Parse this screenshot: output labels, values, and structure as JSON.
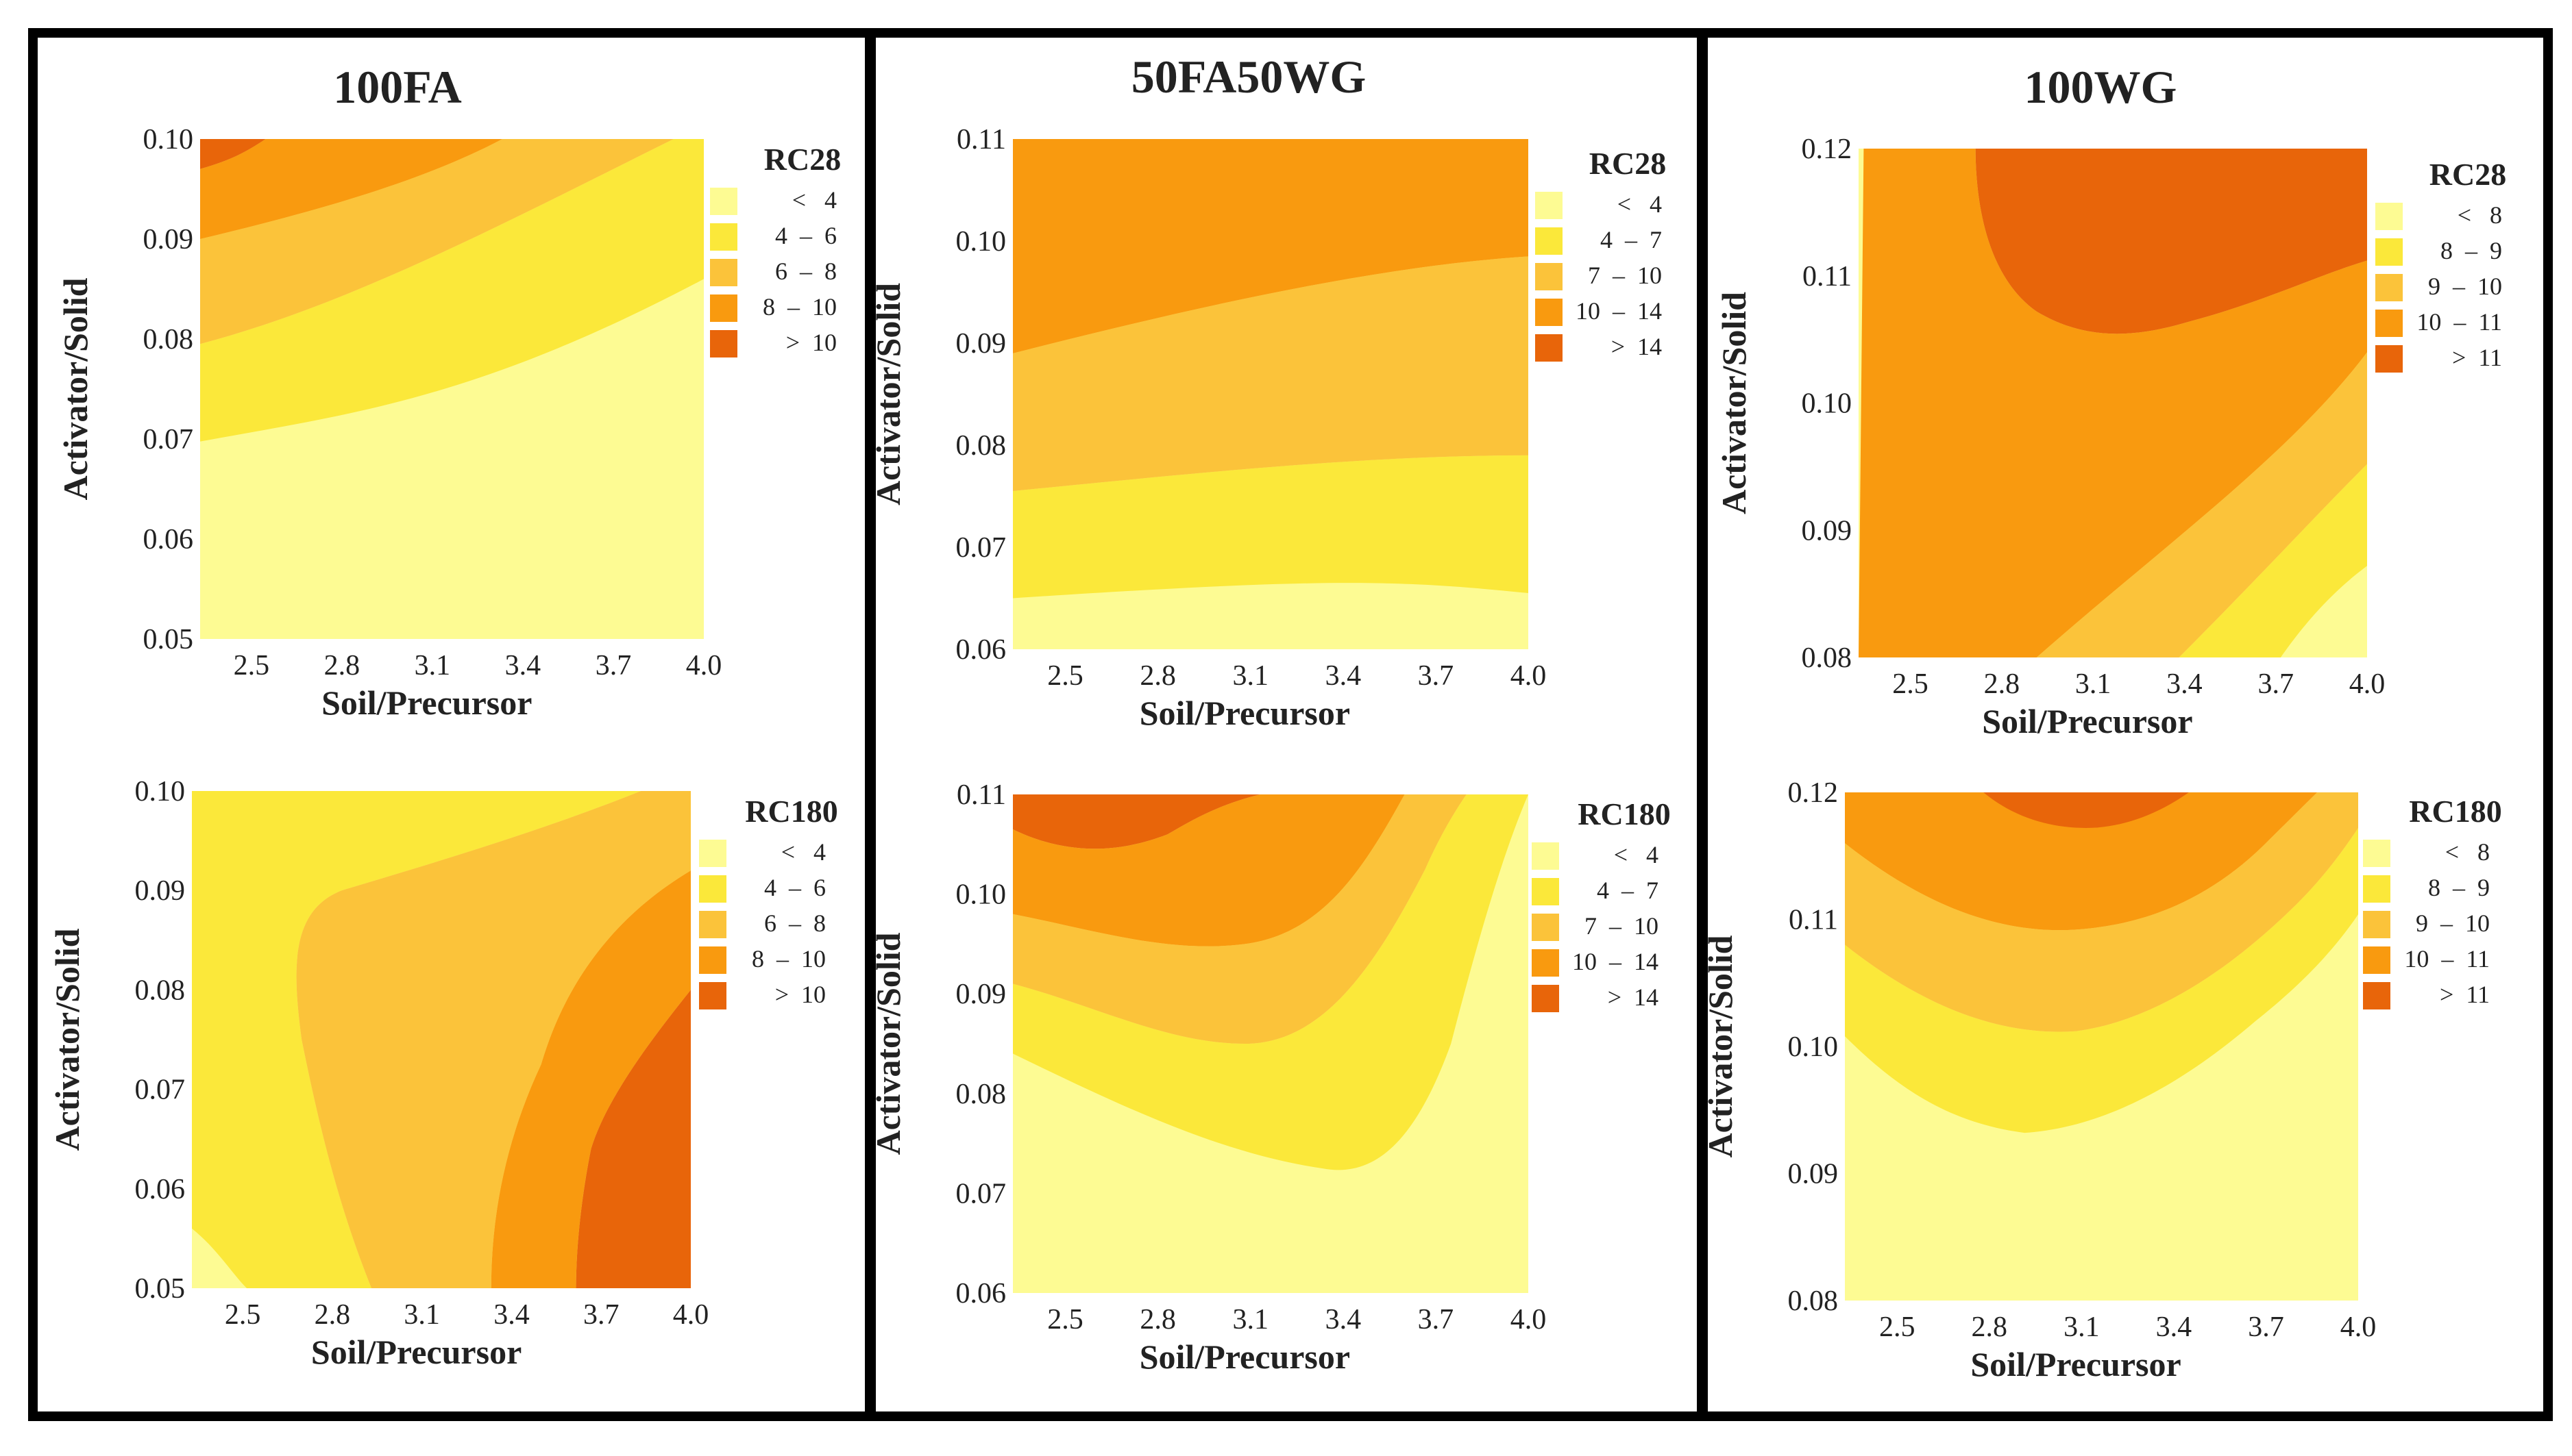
{
  "colors": {
    "c1": "#fdfb93",
    "c2": "#fbe83a",
    "c3": "#fbc33a",
    "c4": "#f99a0f",
    "c5": "#e8650a",
    "frame": "#000000"
  },
  "chart_data": [
    {
      "type": "contour",
      "column_title": "100FA",
      "legend_title": "RC28",
      "legend_labels": [
        "<   4",
        "4  –  6",
        "6  –  8",
        "8  –  10",
        ">  10"
      ],
      "xlabel": "Soil/Precursor",
      "ylabel": "Activator/Solid",
      "x_ticks": [
        "2.5",
        "2.8",
        "3.1",
        "3.4",
        "3.7",
        "4.0"
      ],
      "y_ticks": [
        "0.10",
        "0.09",
        "0.08",
        "0.07",
        "0.06",
        "0.05"
      ],
      "x_range": [
        2.33,
        4.0
      ],
      "y_range": [
        0.05,
        0.1
      ]
    },
    {
      "type": "contour",
      "column_title": "50FA50WG",
      "legend_title": "RC28",
      "legend_labels": [
        "<   4",
        "4  –  7",
        "7  –  10",
        "10  –  14",
        ">  14"
      ],
      "xlabel": "Soil/Precursor",
      "ylabel": "Activator/Solid",
      "x_ticks": [
        "2.5",
        "2.8",
        "3.1",
        "3.4",
        "3.7",
        "4.0"
      ],
      "y_ticks": [
        "0.11",
        "0.10",
        "0.09",
        "0.08",
        "0.07",
        "0.06"
      ],
      "x_range": [
        2.33,
        4.0
      ],
      "y_range": [
        0.06,
        0.11
      ]
    },
    {
      "type": "contour",
      "column_title": "100WG",
      "legend_title": "RC28",
      "legend_labels": [
        "<   8",
        "8  –  9",
        "9  –  10",
        "10  –  11",
        ">  11"
      ],
      "xlabel": "Soil/Precursor",
      "ylabel": "Activator/Solid",
      "x_ticks": [
        "2.5",
        "2.8",
        "3.1",
        "3.4",
        "3.7",
        "4.0"
      ],
      "y_ticks": [
        "0.12",
        "0.11",
        "0.10",
        "0.09",
        "0.08"
      ],
      "x_range": [
        2.33,
        4.0
      ],
      "y_range": [
        0.08,
        0.12
      ]
    },
    {
      "type": "contour",
      "legend_title": "RC180",
      "legend_labels": [
        "<   4",
        "4  –  6",
        "6  –  8",
        "8  –  10",
        ">  10"
      ],
      "xlabel": "Soil/Precursor",
      "ylabel": "Activator/Solid",
      "x_ticks": [
        "2.5",
        "2.8",
        "3.1",
        "3.4",
        "3.7",
        "4.0"
      ],
      "y_ticks": [
        "0.10",
        "0.09",
        "0.08",
        "0.07",
        "0.06",
        "0.05"
      ],
      "x_range": [
        2.33,
        4.0
      ],
      "y_range": [
        0.05,
        0.1
      ]
    },
    {
      "type": "contour",
      "legend_title": "RC180",
      "legend_labels": [
        "<   4",
        "4  –  7",
        "7  –  10",
        "10  –  14",
        ">  14"
      ],
      "xlabel": "Soil/Precursor",
      "ylabel": "Activator/Solid",
      "x_ticks": [
        "2.5",
        "2.8",
        "3.1",
        "3.4",
        "3.7",
        "4.0"
      ],
      "y_ticks": [
        "0.11",
        "0.10",
        "0.09",
        "0.08",
        "0.07",
        "0.06"
      ],
      "x_range": [
        2.33,
        4.0
      ],
      "y_range": [
        0.06,
        0.11
      ]
    },
    {
      "type": "contour",
      "legend_title": "RC180",
      "legend_labels": [
        "<   8",
        "8  –  9",
        "9  –  10",
        "10  –  11",
        ">  11"
      ],
      "xlabel": "Soil/Precursor",
      "ylabel": "Activator/Solid",
      "x_ticks": [
        "2.5",
        "2.8",
        "3.1",
        "3.4",
        "3.7",
        "4.0"
      ],
      "y_ticks": [
        "0.12",
        "0.11",
        "0.10",
        "0.09",
        "0.08"
      ],
      "x_range": [
        2.33,
        4.0
      ],
      "y_range": [
        0.08,
        0.12
      ]
    }
  ]
}
